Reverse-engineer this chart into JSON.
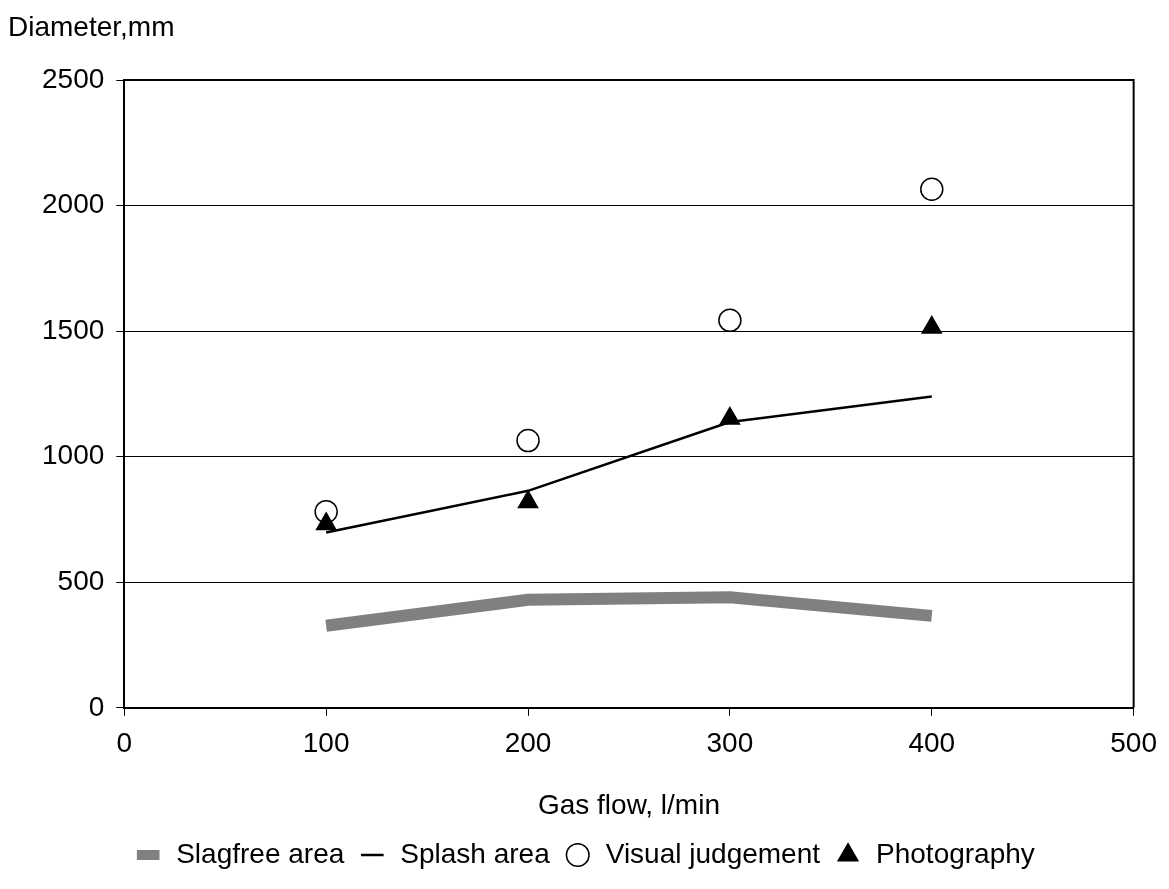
{
  "chart_data": {
    "type": "line",
    "xlabel": "Gas flow, l/min",
    "ylabel": "Diameter,mm",
    "x": [
      100,
      200,
      300,
      400
    ],
    "xlim": [
      0,
      500
    ],
    "xticks": [
      0,
      100,
      200,
      300,
      400,
      500
    ],
    "ylim": [
      0,
      2500
    ],
    "yticks": [
      0,
      500,
      1000,
      1500,
      2000,
      2500
    ],
    "grid": "y",
    "legend": "bottom",
    "series": [
      {
        "name": "Slagfree area",
        "color": "#808080",
        "marker": "none",
        "values": [
          327,
          430,
          440,
          366
        ]
      },
      {
        "name": "Splash area",
        "color": "#000000",
        "marker": "none",
        "values": [
          698,
          864,
          1138,
          1240
        ]
      },
      {
        "name": "Visual judgement",
        "type": "scatter",
        "color": "#000000",
        "marker": "circle",
        "values": [
          781,
          1064,
          1543,
          2065
        ]
      },
      {
        "name": "Photography",
        "type": "scatter",
        "color": "#000000",
        "marker": "triangle",
        "values": [
          732,
          820,
          1152,
          1514
        ]
      }
    ]
  }
}
